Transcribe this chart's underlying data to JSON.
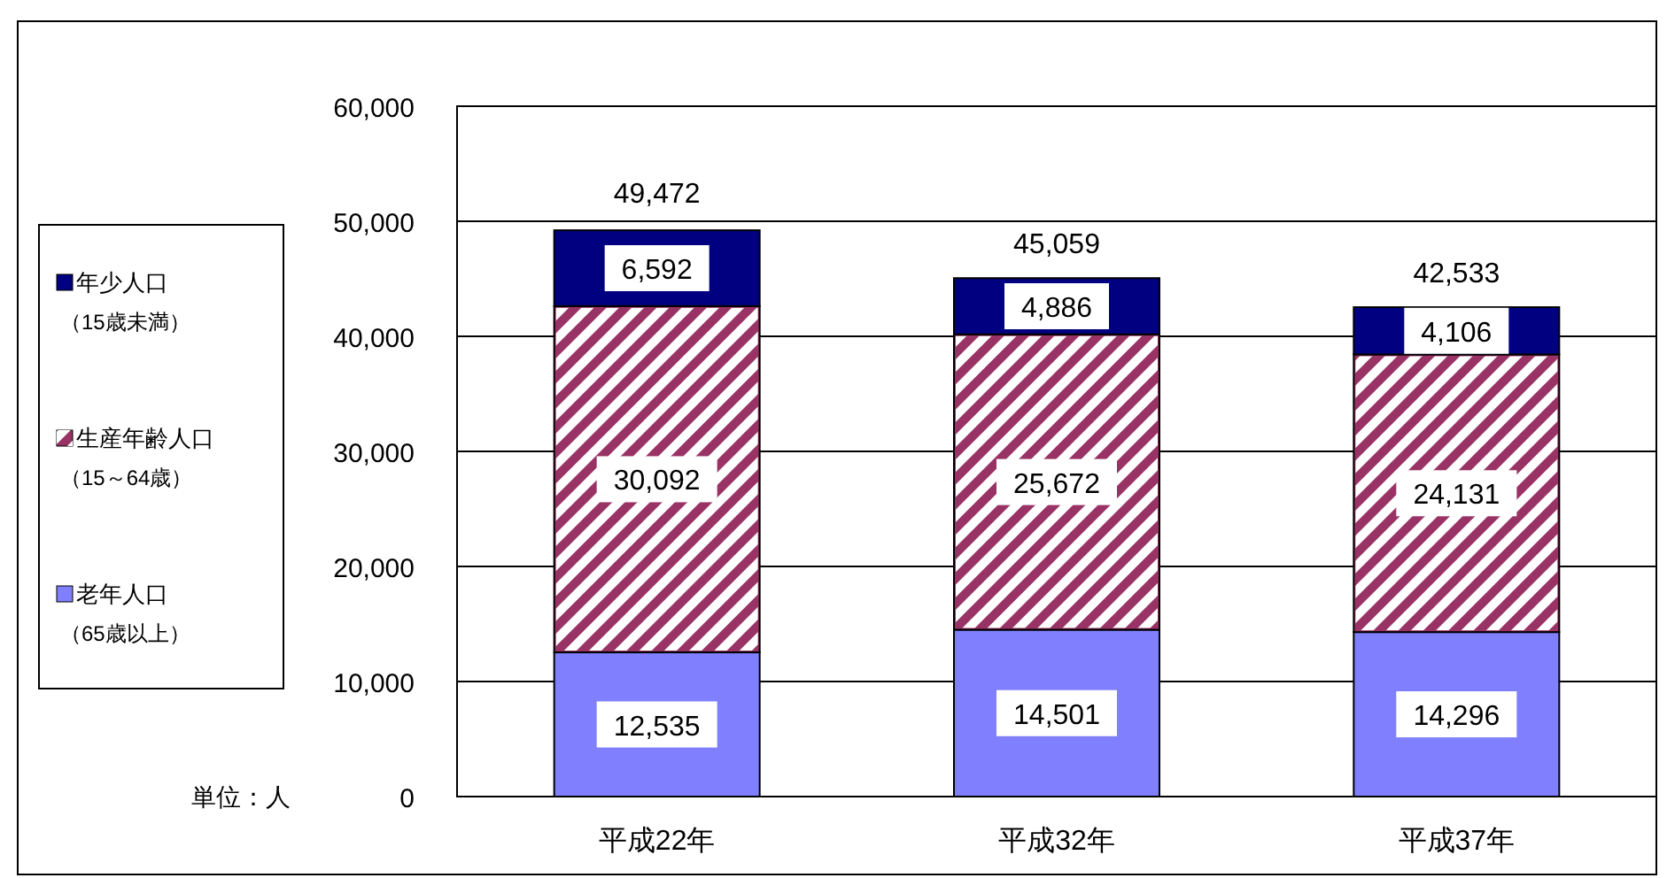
{
  "chart_data": {
    "type": "bar",
    "stacked": true,
    "categories": [
      "平成22年",
      "平成32年",
      "平成37年"
    ],
    "series": [
      {
        "name": "老年人口（65歳以上）",
        "color": "#8080ff",
        "values": [
          12535,
          14501,
          14296
        ],
        "value_labels": [
          "12,535",
          "14,501",
          "14,296"
        ]
      },
      {
        "name": "生産年齢人口（15～64歳）",
        "color": "#993366",
        "values": [
          30092,
          25672,
          24131
        ],
        "value_labels": [
          "30,092",
          "25,672",
          "24,131"
        ]
      },
      {
        "name": "年少人口（15歳未満）",
        "color": "#000080",
        "values": [
          6592,
          4886,
          4106
        ],
        "value_labels": [
          "6,592",
          "4,886",
          "4,106"
        ]
      }
    ],
    "ylim": [
      0,
      60000
    ],
    "yticks": [
      0,
      {
        "value": 10000,
        "label": "10,000"
      },
      {
        "value": 20000,
        "label": "20,000"
      },
      {
        "value": 30000,
        "label": "30,000"
      },
      {
        "value": 40000,
        "label": "40,000"
      },
      {
        "value": 50000,
        "label": "50,000"
      },
      {
        "value": 60000,
        "label": "60,000"
      }
    ],
    "grid": "y",
    "legend": "left",
    "annotations": [
      "単位：人",
      {
        "text": "49,472",
        "x": "平成22年",
        "y": 49472
      },
      {
        "text": "45,059",
        "x": "平成32年",
        "y": 45059
      },
      {
        "text": "42,533",
        "x": "平成37年",
        "y": 42533
      }
    ]
  }
}
